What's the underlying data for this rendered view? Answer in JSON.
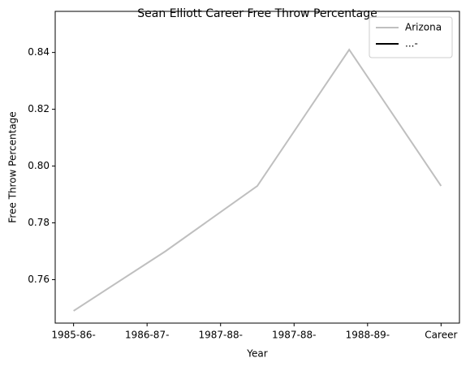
{
  "chart_data": {
    "type": "line",
    "title": "Sean Elliott Career Free Throw Percentage",
    "xlabel": "Year",
    "ylabel": "Free Throw Percentage",
    "x": [
      0,
      1,
      2,
      3,
      4
    ],
    "series": [
      {
        "name": "Arizona",
        "color": "#bfbfbf",
        "values": [
          0.749,
          0.77,
          0.793,
          0.841,
          0.793
        ]
      },
      {
        "name": "...-",
        "color": "#000000",
        "values": [
          null,
          null,
          null,
          null,
          null
        ]
      }
    ],
    "xlim": [
      -0.2,
      4.2
    ],
    "xticks": [
      {
        "value": 0,
        "label": "1985-86-"
      },
      {
        "value": 0.8,
        "label": "1986-87-"
      },
      {
        "value": 1.6,
        "label": "1987-88-"
      },
      {
        "value": 2.4,
        "label": "1987-88-"
      },
      {
        "value": 3.2,
        "label": "1988-89-"
      },
      {
        "value": 4.0,
        "label": "Career"
      }
    ],
    "ylim": [
      0.7447,
      0.8499
    ],
    "yticks": [
      {
        "value": 0.76,
        "label": "0.76"
      },
      {
        "value": 0.78,
        "label": "0.78"
      },
      {
        "value": 0.8,
        "label": "0.80"
      },
      {
        "value": 0.82,
        "label": "0.82"
      },
      {
        "value": 0.84,
        "label": "0.84"
      }
    ],
    "legend": "upper right",
    "grid": false
  }
}
